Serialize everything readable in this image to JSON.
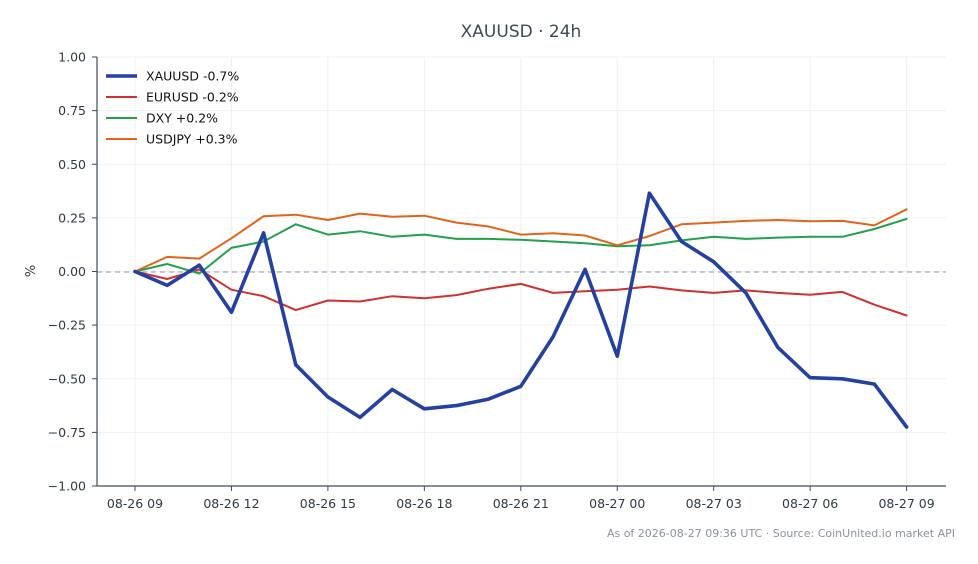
{
  "chart_data": {
    "type": "line",
    "title": "XAUUSD · 24h",
    "xlabel": "",
    "ylabel": "%",
    "ylim": [
      -1.0,
      1.0
    ],
    "yticks": [
      "1.00",
      "0.75",
      "0.50",
      "0.25",
      "0.00",
      "−0.25",
      "−0.50",
      "−0.75",
      "−1.00"
    ],
    "ytick_values": [
      1.0,
      0.75,
      0.5,
      0.25,
      0.0,
      -0.25,
      -0.5,
      -0.75,
      -1.0
    ],
    "xticks": [
      "08-26 09",
      "08-26 12",
      "08-26 15",
      "08-26 18",
      "08-26 21",
      "08-27 00",
      "08-27 03",
      "08-27 06",
      "08-27 09"
    ],
    "xtick_positions": [
      0,
      3,
      6,
      9,
      12,
      15,
      18,
      21,
      24
    ],
    "x": [
      "08-26 09",
      "08-26 10",
      "08-26 11",
      "08-26 12",
      "08-26 13",
      "08-26 14",
      "08-26 15",
      "08-26 16",
      "08-26 17",
      "08-26 18",
      "08-26 19",
      "08-26 20",
      "08-26 21",
      "08-26 22",
      "08-26 23",
      "08-27 00",
      "08-27 01",
      "08-27 02",
      "08-27 03",
      "08-27 04",
      "08-27 05",
      "08-27 06",
      "08-27 07",
      "08-27 08",
      "08-27 09"
    ],
    "zero_line": true,
    "grid": true,
    "legend_position": "top-left",
    "series": [
      {
        "name": "XAUUSD -0.7%",
        "color": "#2440a0",
        "values": [
          0.0,
          -0.065,
          0.03,
          -0.19,
          0.18,
          -0.435,
          -0.585,
          -0.68,
          -0.55,
          -0.64,
          -0.625,
          -0.595,
          -0.535,
          -0.305,
          0.01,
          -0.395,
          0.365,
          0.14,
          0.045,
          -0.1,
          -0.355,
          -0.495,
          -0.5,
          -0.525,
          -0.725
        ]
      },
      {
        "name": "EURUSD -0.2%",
        "color": "#d32f2f",
        "values": [
          0.0,
          -0.035,
          0.01,
          -0.085,
          -0.115,
          -0.18,
          -0.135,
          -0.14,
          -0.115,
          -0.125,
          -0.11,
          -0.08,
          -0.058,
          -0.1,
          -0.092,
          -0.085,
          -0.07,
          -0.088,
          -0.1,
          -0.088,
          -0.1,
          -0.108,
          -0.095,
          -0.155,
          -0.205
        ]
      },
      {
        "name": "DXY +0.2%",
        "color": "#22a04a",
        "values": [
          0.0,
          0.035,
          -0.01,
          0.11,
          0.14,
          0.22,
          0.172,
          0.188,
          0.162,
          0.172,
          0.152,
          0.152,
          0.148,
          0.14,
          0.132,
          0.118,
          0.122,
          0.145,
          0.162,
          0.152,
          0.158,
          0.162,
          0.162,
          0.198,
          0.245
        ]
      },
      {
        "name": "USDJPY +0.3%",
        "color": "#e2631a",
        "values": [
          0.0,
          0.068,
          0.06,
          0.155,
          0.258,
          0.265,
          0.24,
          0.27,
          0.255,
          0.26,
          0.228,
          0.21,
          0.172,
          0.178,
          0.168,
          0.122,
          0.165,
          0.22,
          0.228,
          0.236,
          0.24,
          0.234,
          0.236,
          0.215,
          0.29
        ]
      }
    ]
  },
  "footer": "As of 2026-08-27 09:36 UTC · Source: CoinUnited.io market API"
}
